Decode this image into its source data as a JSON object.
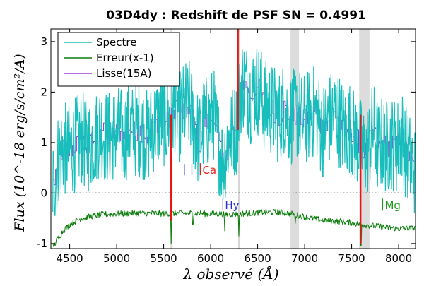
{
  "chart_data": {
    "type": "line",
    "title": "03D4dy : Redshift de PSF SN = 0.4991",
    "xlabel": "λ observé (Å)",
    "ylabel": "Flux (10^-18 erg/s/cm²/A)",
    "xlim": [
      4300,
      8180
    ],
    "ylim": [
      -1.1,
      3.25
    ],
    "x_ticks": [
      4500,
      5000,
      5500,
      6000,
      6500,
      7000,
      7500,
      8000
    ],
    "y_ticks": [
      -1,
      0,
      1,
      2,
      3
    ],
    "legend_position": "top-left",
    "grid": false,
    "zero_line": {
      "y": 0,
      "style": "dotted"
    },
    "shaded_bands": [
      [
        6850,
        6940
      ],
      [
        7580,
        7690
      ]
    ],
    "thin_gray_lines": [
      5580,
      6300
    ],
    "series": [
      {
        "name": "Spectre",
        "color": "#17bebb",
        "x": [
          4330,
          4380,
          4430,
          4480,
          4530,
          4580,
          4630,
          4680,
          4730,
          4780,
          4830,
          4880,
          4930,
          4980,
          5030,
          5080,
          5130,
          5180,
          5230,
          5280,
          5330,
          5380,
          5430,
          5480,
          5530,
          5580,
          5630,
          5680,
          5730,
          5780,
          5830,
          5880,
          5930,
          5980,
          6030,
          6080,
          6130,
          6180,
          6230,
          6280,
          6330,
          6380,
          6430,
          6480,
          6530,
          6580,
          6630,
          6680,
          6730,
          6780,
          6830,
          6880,
          6930,
          6980,
          7030,
          7080,
          7130,
          7180,
          7230,
          7280,
          7330,
          7380,
          7430,
          7480,
          7530,
          7580,
          7630,
          7680,
          7730,
          7780,
          7830,
          7880,
          7930,
          7980,
          8030,
          8080,
          8130,
          8170
        ],
        "y": [
          0.2,
          0.7,
          0.9,
          0.8,
          0.9,
          1.0,
          1.1,
          0.9,
          1.0,
          1.1,
          1.3,
          1.1,
          1.1,
          1.2,
          1.2,
          1.1,
          1.3,
          1.2,
          1.3,
          1.2,
          1.1,
          1.3,
          1.4,
          1.5,
          1.4,
          1.5,
          1.8,
          1.5,
          1.7,
          1.7,
          1.3,
          1.0,
          1.4,
          1.4,
          1.6,
          1.0,
          0.6,
          1.0,
          1.2,
          1.3,
          2.2,
          2.1,
          1.9,
          2.1,
          2.0,
          1.7,
          1.7,
          1.6,
          1.5,
          1.7,
          1.5,
          1.5,
          1.6,
          1.4,
          1.5,
          1.6,
          1.6,
          1.2,
          1.4,
          1.5,
          1.6,
          1.4,
          1.2,
          1.3,
          1.1,
          1.0,
          0.8,
          0.9,
          1.3,
          0.9,
          1.0,
          0.9,
          1.0,
          0.9,
          1.2,
          0.8,
          0.6,
          0.5
        ],
        "amplitude": 0.95
      },
      {
        "name": "Erreur(x-1)",
        "color": "#0b7d0b",
        "x": [
          4330,
          4380,
          4430,
          4480,
          4530,
          4580,
          4630,
          4680,
          4730,
          4780,
          4830,
          4880,
          4930,
          4980,
          5030,
          5080,
          5130,
          5180,
          5230,
          5280,
          5330,
          5380,
          5430,
          5480,
          5530,
          5580,
          5630,
          5680,
          5730,
          5780,
          5830,
          5880,
          5930,
          5980,
          6030,
          6080,
          6130,
          6180,
          6230,
          6280,
          6330,
          6380,
          6430,
          6480,
          6530,
          6580,
          6630,
          6680,
          6730,
          6780,
          6830,
          6880,
          6930,
          6980,
          7030,
          7080,
          7130,
          7180,
          7230,
          7280,
          7330,
          7380,
          7430,
          7480,
          7530,
          7580,
          7630,
          7680,
          7730,
          7780,
          7830,
          7880,
          7930,
          7980,
          8030,
          8080,
          8130,
          8170
        ],
        "y": [
          -1.05,
          -0.88,
          -0.75,
          -0.66,
          -0.59,
          -0.54,
          -0.5,
          -0.48,
          -0.46,
          -0.44,
          -0.43,
          -0.42,
          -0.42,
          -0.41,
          -0.41,
          -0.41,
          -0.4,
          -0.4,
          -0.4,
          -0.4,
          -0.4,
          -0.4,
          -0.4,
          -0.41,
          -0.4,
          -0.41,
          -0.4,
          -0.4,
          -0.4,
          -0.4,
          -0.4,
          -0.4,
          -0.41,
          -0.41,
          -0.41,
          -0.41,
          -0.42,
          -0.42,
          -0.42,
          -0.42,
          -0.41,
          -0.4,
          -0.4,
          -0.39,
          -0.38,
          -0.38,
          -0.38,
          -0.38,
          -0.38,
          -0.39,
          -0.4,
          -0.42,
          -0.44,
          -0.46,
          -0.48,
          -0.5,
          -0.52,
          -0.53,
          -0.55,
          -0.55,
          -0.56,
          -0.56,
          -0.57,
          -0.58,
          -0.6,
          -0.62,
          -0.63,
          -0.64,
          -0.65,
          -0.66,
          -0.67,
          -0.68,
          -0.69,
          -0.7,
          -0.7,
          -0.7,
          -0.7,
          -0.7
        ],
        "amplitude": 0.06,
        "dips": [
          [
            5580,
            -1.0
          ],
          [
            5810,
            -0.62
          ],
          [
            6150,
            -0.75
          ],
          [
            6300,
            -0.85
          ],
          [
            6900,
            -0.6
          ],
          [
            7600,
            -1.05
          ]
        ]
      },
      {
        "name": "Lisse(15A)",
        "color": "#9a3fd9",
        "x": [
          4330,
          4380,
          4430,
          4480,
          4530,
          4580,
          4630,
          4680,
          4730,
          4780,
          4830,
          4880,
          4930,
          4980,
          5030,
          5080,
          5130,
          5180,
          5230,
          5280,
          5330,
          5380,
          5430,
          5480,
          5530,
          5580,
          5630,
          5680,
          5730,
          5780,
          5830,
          5880,
          5930,
          5980,
          6030,
          6080,
          6130,
          6180,
          6230,
          6280,
          6330,
          6380,
          6430,
          6480,
          6530,
          6580,
          6630,
          6680,
          6730,
          6780,
          6830,
          6880,
          6930,
          6980,
          7030,
          7080,
          7130,
          7180,
          7230,
          7280,
          7330,
          7380,
          7430,
          7480,
          7530,
          7580,
          7630,
          7680,
          7730,
          7780,
          7830,
          7880,
          7930,
          7980,
          8030,
          8080,
          8130,
          8170
        ],
        "y": [
          0.2,
          0.7,
          0.9,
          0.8,
          0.9,
          1.0,
          1.1,
          0.9,
          1.0,
          1.1,
          1.3,
          1.1,
          1.1,
          1.2,
          1.2,
          1.1,
          1.3,
          1.2,
          1.3,
          1.2,
          1.1,
          1.3,
          1.4,
          1.5,
          1.4,
          1.5,
          1.8,
          1.5,
          1.7,
          1.7,
          1.3,
          1.0,
          1.4,
          1.4,
          1.6,
          1.0,
          0.6,
          1.0,
          1.2,
          1.3,
          2.2,
          2.1,
          1.9,
          2.1,
          2.0,
          1.7,
          1.7,
          1.6,
          1.5,
          1.7,
          1.5,
          1.5,
          1.6,
          1.4,
          1.5,
          1.6,
          1.6,
          1.2,
          1.4,
          1.5,
          1.6,
          1.4,
          1.2,
          1.3,
          1.1,
          1.0,
          0.8,
          0.9,
          1.3,
          0.9,
          1.0,
          0.9,
          1.0,
          0.9,
          1.2,
          0.8,
          0.6,
          0.5
        ],
        "amplitude": 0.22
      }
    ],
    "red_spikes": [
      {
        "x": 5580,
        "y_top": 1.55,
        "y_bottom": -0.55
      },
      {
        "x": 6290,
        "y_top": 3.25,
        "y_bottom": 1.25
      },
      {
        "x": 7595,
        "y_top": 1.55,
        "y_bottom": -1.0
      }
    ],
    "annotations": [
      {
        "text": "Ca",
        "x": 5990,
        "y": 0.38,
        "color": "#e82020",
        "tick_x": 5890
      },
      {
        "text": "Hy",
        "x": 6180,
        "y": -0.32,
        "color": "#2a2ad0",
        "tick_x": 6130
      },
      {
        "text": "Mg",
        "x": 7960,
        "y": -0.32,
        "color": "#1a9a1a",
        "tick_x": 7830
      }
    ],
    "blue_ticks": [
      5720,
      5800
    ]
  }
}
